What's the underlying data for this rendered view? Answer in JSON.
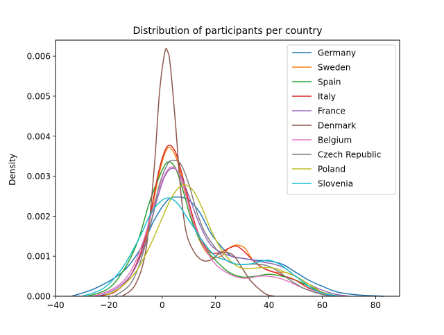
{
  "chart_data": {
    "type": "line",
    "title": "Distribution of participants per country",
    "xlabel": "",
    "ylabel": "Density",
    "xlim": [
      -40,
      89
    ],
    "ylim": [
      0,
      0.0064
    ],
    "xticks": [
      -40,
      -20,
      0,
      20,
      40,
      60,
      80
    ],
    "xtick_labels": [
      "−40",
      "−20",
      "0",
      "20",
      "40",
      "60",
      "80"
    ],
    "yticks": [
      0,
      0.001,
      0.002,
      0.003,
      0.004,
      0.005,
      0.006
    ],
    "ytick_labels": [
      "0.000",
      "0.001",
      "0.002",
      "0.003",
      "0.004",
      "0.005",
      "0.006"
    ],
    "grid": false,
    "legend_position": "top-right",
    "series": [
      {
        "name": "Germany",
        "color": "#1f77b4",
        "points": [
          [
            -34,
            0
          ],
          [
            -25,
            0.0002
          ],
          [
            -15,
            0.0006
          ],
          [
            -8,
            0.0012
          ],
          [
            -3,
            0.0019
          ],
          [
            2,
            0.0024
          ],
          [
            6,
            0.00248
          ],
          [
            10,
            0.0024
          ],
          [
            14,
            0.0021
          ],
          [
            18,
            0.0016
          ],
          [
            22,
            0.00125
          ],
          [
            26,
            0.001
          ],
          [
            30,
            0.00095
          ],
          [
            35,
            0.0009
          ],
          [
            40,
            0.00088
          ],
          [
            45,
            0.0008
          ],
          [
            50,
            0.0006
          ],
          [
            55,
            0.0004
          ],
          [
            60,
            0.00025
          ],
          [
            66,
            0.0001
          ],
          [
            74,
            3e-05
          ],
          [
            83,
            0
          ]
        ]
      },
      {
        "name": "Sweden",
        "color": "#ff7f0e",
        "points": [
          [
            -25,
            0
          ],
          [
            -18,
            0.0001
          ],
          [
            -12,
            0.0005
          ],
          [
            -7,
            0.0012
          ],
          [
            -4,
            0.0021
          ],
          [
            -1,
            0.0031
          ],
          [
            2,
            0.0037
          ],
          [
            5,
            0.0035
          ],
          [
            8,
            0.0028
          ],
          [
            11,
            0.002
          ],
          [
            14,
            0.0014
          ],
          [
            18,
            0.001
          ],
          [
            22,
            0.001
          ],
          [
            25,
            0.0012
          ],
          [
            28,
            0.00128
          ],
          [
            31,
            0.0012
          ],
          [
            34,
            0.0009
          ],
          [
            38,
            0.0007
          ],
          [
            42,
            0.0006
          ],
          [
            46,
            0.0006
          ],
          [
            50,
            0.0005
          ],
          [
            55,
            0.0003
          ],
          [
            60,
            0.0001
          ],
          [
            65,
            0
          ]
        ]
      },
      {
        "name": "Spain",
        "color": "#2ca02c",
        "points": [
          [
            -28,
            0
          ],
          [
            -20,
            0.0002
          ],
          [
            -14,
            0.0007
          ],
          [
            -9,
            0.0014
          ],
          [
            -5,
            0.0023
          ],
          [
            -1,
            0.003
          ],
          [
            2,
            0.00335
          ],
          [
            5,
            0.0032
          ],
          [
            8,
            0.0026
          ],
          [
            11,
            0.0019
          ],
          [
            15,
            0.0013
          ],
          [
            20,
            0.0009
          ],
          [
            25,
            0.0006
          ],
          [
            30,
            0.00048
          ],
          [
            35,
            0.0005
          ],
          [
            40,
            0.00055
          ],
          [
            45,
            0.0005
          ],
          [
            50,
            0.0004
          ],
          [
            55,
            0.00025
          ],
          [
            60,
            0.0001
          ],
          [
            66,
            0
          ]
        ]
      },
      {
        "name": "Italy",
        "color": "#d62728",
        "points": [
          [
            -25,
            0
          ],
          [
            -18,
            0.0001
          ],
          [
            -12,
            0.0005
          ],
          [
            -7,
            0.0013
          ],
          [
            -4,
            0.0022
          ],
          [
            -1,
            0.0032
          ],
          [
            2,
            0.00375
          ],
          [
            5,
            0.0036
          ],
          [
            8,
            0.0029
          ],
          [
            11,
            0.0021
          ],
          [
            14,
            0.0015
          ],
          [
            18,
            0.0011
          ],
          [
            22,
            0.0011
          ],
          [
            25,
            0.0012
          ],
          [
            28,
            0.00125
          ],
          [
            31,
            0.0011
          ],
          [
            34,
            0.0009
          ],
          [
            38,
            0.0007
          ],
          [
            42,
            0.0006
          ],
          [
            46,
            0.0005
          ],
          [
            50,
            0.0004
          ],
          [
            55,
            0.0002
          ],
          [
            60,
            0.0001
          ],
          [
            65,
            0
          ]
        ]
      },
      {
        "name": "France",
        "color": "#9467bd",
        "points": [
          [
            -24,
            0
          ],
          [
            -17,
            0.0002
          ],
          [
            -11,
            0.0006
          ],
          [
            -6,
            0.0014
          ],
          [
            -2,
            0.0024
          ],
          [
            1,
            0.003
          ],
          [
            4,
            0.0032
          ],
          [
            7,
            0.003
          ],
          [
            10,
            0.0025
          ],
          [
            14,
            0.0018
          ],
          [
            18,
            0.0013
          ],
          [
            22,
            0.0011
          ],
          [
            26,
            0.001
          ],
          [
            30,
            0.00095
          ],
          [
            34,
            0.0009
          ],
          [
            38,
            0.00085
          ],
          [
            42,
            0.0008
          ],
          [
            46,
            0.0007
          ],
          [
            50,
            0.0005
          ],
          [
            55,
            0.0003
          ],
          [
            60,
            0.00015
          ],
          [
            65,
            5e-05
          ],
          [
            70,
            0
          ]
        ]
      },
      {
        "name": "Denmark",
        "color": "#8c564b",
        "points": [
          [
            -15,
            0
          ],
          [
            -10,
            0.0003
          ],
          [
            -6,
            0.0012
          ],
          [
            -3,
            0.0032
          ],
          [
            -1,
            0.0051
          ],
          [
            1,
            0.0061
          ],
          [
            2,
            0.00612
          ],
          [
            3,
            0.0058
          ],
          [
            5,
            0.0043
          ],
          [
            7,
            0.0026
          ],
          [
            9,
            0.0016
          ],
          [
            12,
            0.0011
          ],
          [
            15,
            0.0009
          ],
          [
            18,
            0.0009
          ],
          [
            21,
            0.00105
          ],
          [
            24,
            0.0011
          ],
          [
            27,
            0.001
          ],
          [
            30,
            0.0007
          ],
          [
            33,
            0.0004
          ],
          [
            36,
            0.0002
          ],
          [
            39,
            5e-05
          ],
          [
            42,
            0
          ]
        ]
      },
      {
        "name": "Belgium",
        "color": "#e377c2",
        "points": [
          [
            -26,
            0
          ],
          [
            -18,
            0.0002
          ],
          [
            -12,
            0.0006
          ],
          [
            -7,
            0.0014
          ],
          [
            -3,
            0.0023
          ],
          [
            0,
            0.0029
          ],
          [
            3,
            0.00322
          ],
          [
            6,
            0.0031
          ],
          [
            9,
            0.0025
          ],
          [
            12,
            0.0018
          ],
          [
            16,
            0.0012
          ],
          [
            20,
            0.0008
          ],
          [
            24,
            0.0006
          ],
          [
            28,
            0.00048
          ],
          [
            32,
            0.00045
          ],
          [
            36,
            0.0005
          ],
          [
            40,
            0.0005
          ],
          [
            44,
            0.00045
          ],
          [
            48,
            0.00035
          ],
          [
            53,
            0.0002
          ],
          [
            58,
            0.0001
          ],
          [
            64,
            0
          ]
        ]
      },
      {
        "name": "Czech Republic",
        "color": "#7f7f7f",
        "points": [
          [
            -18,
            0
          ],
          [
            -12,
            0.0003
          ],
          [
            -8,
            0.0009
          ],
          [
            -4,
            0.0019
          ],
          [
            -1,
            0.0028
          ],
          [
            2,
            0.0033
          ],
          [
            4,
            0.0034
          ],
          [
            7,
            0.0033
          ],
          [
            10,
            0.0028
          ],
          [
            13,
            0.0021
          ],
          [
            16,
            0.0016
          ],
          [
            20,
            0.0012
          ],
          [
            24,
            0.0009
          ],
          [
            28,
            0.0008
          ],
          [
            32,
            0.0008
          ],
          [
            36,
            0.0008
          ],
          [
            40,
            0.00075
          ],
          [
            44,
            0.0006
          ],
          [
            48,
            0.0004
          ],
          [
            53,
            0.0002
          ],
          [
            58,
            8e-05
          ],
          [
            63,
            0
          ]
        ]
      },
      {
        "name": "Poland",
        "color": "#bcbd22",
        "points": [
          [
            -22,
            0
          ],
          [
            -16,
            0.0002
          ],
          [
            -10,
            0.0006
          ],
          [
            -5,
            0.0012
          ],
          [
            -1,
            0.0018
          ],
          [
            3,
            0.0024
          ],
          [
            6,
            0.0027
          ],
          [
            9,
            0.00278
          ],
          [
            12,
            0.0026
          ],
          [
            15,
            0.0022
          ],
          [
            18,
            0.0017
          ],
          [
            21,
            0.0013
          ],
          [
            24,
            0.001
          ],
          [
            27,
            0.0008
          ],
          [
            30,
            0.0007
          ],
          [
            34,
            0.0007
          ],
          [
            38,
            0.00072
          ],
          [
            42,
            0.0007
          ],
          [
            46,
            0.0006
          ],
          [
            50,
            0.0005
          ],
          [
            55,
            0.0003
          ],
          [
            60,
            0.0001
          ],
          [
            66,
            0
          ]
        ]
      },
      {
        "name": "Slovenia",
        "color": "#17becf",
        "points": [
          [
            -30,
            0
          ],
          [
            -22,
            0.0002
          ],
          [
            -15,
            0.0007
          ],
          [
            -9,
            0.0014
          ],
          [
            -4,
            0.0021
          ],
          [
            0,
            0.0024
          ],
          [
            3,
            0.00245
          ],
          [
            6,
            0.0023
          ],
          [
            9,
            0.002
          ],
          [
            12,
            0.0017
          ],
          [
            16,
            0.0013
          ],
          [
            20,
            0.001
          ],
          [
            24,
            0.0009
          ],
          [
            28,
            0.0008
          ],
          [
            32,
            0.0008
          ],
          [
            36,
            0.00085
          ],
          [
            40,
            0.0009
          ],
          [
            44,
            0.0008
          ],
          [
            48,
            0.0006
          ],
          [
            52,
            0.0004
          ],
          [
            56,
            0.0002
          ],
          [
            60,
            8e-05
          ],
          [
            66,
            0
          ]
        ]
      }
    ]
  }
}
